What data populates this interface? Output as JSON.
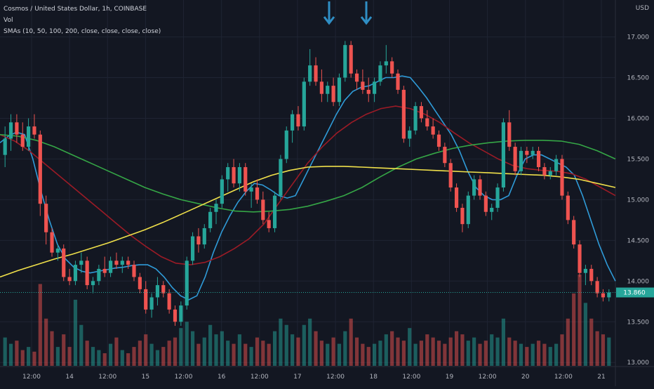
{
  "header": {
    "symbol_line": "Cosmos / United States Dollar, 1h, COINBASE",
    "volume_label": "Vol",
    "sma_label": "SMAs (10, 50, 100, 200, close, close, close, close)"
  },
  "price_axis": {
    "unit": "USD"
  },
  "last_price": "13.860",
  "colors": {
    "background": "#131722",
    "grid": "#1f2433",
    "up": "#26a69a",
    "down": "#ef5350",
    "sma10": "#2f9bd8",
    "sma50": "#9b1b26",
    "sma100": "#35a646",
    "sma200": "#f0e04a",
    "arrow": "#2f8ec4",
    "last_price_bg": "#26a69a"
  },
  "icons": [
    "down-arrow-icon",
    "down-arrow-icon"
  ],
  "chart_data": {
    "type": "candlestick",
    "title": "Cosmos / United States Dollar, 1h, COINBASE",
    "x_ticks": [
      "12:00",
      "14",
      "12:00",
      "15",
      "12:00",
      "16",
      "12:00",
      "17",
      "12:00",
      "18",
      "12:00",
      "19",
      "12:00",
      "20",
      "12:00",
      "21"
    ],
    "y_ticks": [
      "17.000",
      "16.500",
      "16.000",
      "15.500",
      "15.000",
      "14.500",
      "14.000",
      "13.500",
      "13.000"
    ],
    "ylim": [
      12.95,
      17.35
    ],
    "grid": true,
    "candles": [
      {
        "o": 15.55,
        "h": 15.9,
        "l": 15.4,
        "c": 15.75
      },
      {
        "o": 15.75,
        "h": 16.05,
        "l": 15.6,
        "c": 15.95
      },
      {
        "o": 15.95,
        "h": 16.05,
        "l": 15.7,
        "c": 15.8
      },
      {
        "o": 15.8,
        "h": 15.95,
        "l": 15.6,
        "c": 15.65
      },
      {
        "o": 15.65,
        "h": 16.0,
        "l": 15.6,
        "c": 15.9
      },
      {
        "o": 15.9,
        "h": 16.05,
        "l": 15.75,
        "c": 15.8
      },
      {
        "o": 15.8,
        "h": 15.85,
        "l": 14.8,
        "c": 14.95
      },
      {
        "o": 14.95,
        "h": 15.05,
        "l": 14.45,
        "c": 14.6
      },
      {
        "o": 14.6,
        "h": 14.65,
        "l": 14.3,
        "c": 14.35
      },
      {
        "o": 14.35,
        "h": 14.45,
        "l": 14.25,
        "c": 14.4
      },
      {
        "o": 14.4,
        "h": 14.45,
        "l": 14.0,
        "c": 14.05
      },
      {
        "o": 14.05,
        "h": 14.15,
        "l": 13.95,
        "c": 14.0
      },
      {
        "o": 14.0,
        "h": 14.25,
        "l": 13.95,
        "c": 14.2
      },
      {
        "o": 14.2,
        "h": 14.35,
        "l": 14.1,
        "c": 14.25
      },
      {
        "o": 14.25,
        "h": 14.3,
        "l": 13.9,
        "c": 13.95
      },
      {
        "o": 13.95,
        "h": 14.05,
        "l": 13.85,
        "c": 14.0
      },
      {
        "o": 14.0,
        "h": 14.2,
        "l": 13.95,
        "c": 14.15
      },
      {
        "o": 14.15,
        "h": 14.3,
        "l": 14.05,
        "c": 14.1
      },
      {
        "o": 14.1,
        "h": 14.3,
        "l": 14.05,
        "c": 14.25
      },
      {
        "o": 14.25,
        "h": 14.35,
        "l": 14.15,
        "c": 14.2
      },
      {
        "o": 14.2,
        "h": 14.3,
        "l": 14.1,
        "c": 14.25
      },
      {
        "o": 14.25,
        "h": 14.3,
        "l": 14.15,
        "c": 14.2
      },
      {
        "o": 14.2,
        "h": 14.25,
        "l": 14.0,
        "c": 14.05
      },
      {
        "o": 14.05,
        "h": 14.1,
        "l": 13.85,
        "c": 13.9
      },
      {
        "o": 13.9,
        "h": 14.0,
        "l": 13.6,
        "c": 13.65
      },
      {
        "o": 13.65,
        "h": 13.85,
        "l": 13.55,
        "c": 13.8
      },
      {
        "o": 13.8,
        "h": 14.05,
        "l": 13.7,
        "c": 13.95
      },
      {
        "o": 13.95,
        "h": 14.0,
        "l": 13.8,
        "c": 13.85
      },
      {
        "o": 13.85,
        "h": 13.9,
        "l": 13.6,
        "c": 13.65
      },
      {
        "o": 13.65,
        "h": 13.7,
        "l": 13.45,
        "c": 13.5
      },
      {
        "o": 13.5,
        "h": 13.75,
        "l": 13.45,
        "c": 13.7
      },
      {
        "o": 13.7,
        "h": 14.3,
        "l": 13.65,
        "c": 14.25
      },
      {
        "o": 14.25,
        "h": 14.6,
        "l": 14.2,
        "c": 14.55
      },
      {
        "o": 14.55,
        "h": 14.65,
        "l": 14.35,
        "c": 14.45
      },
      {
        "o": 14.45,
        "h": 14.7,
        "l": 14.4,
        "c": 14.65
      },
      {
        "o": 14.65,
        "h": 14.9,
        "l": 14.6,
        "c": 14.85
      },
      {
        "o": 14.85,
        "h": 15.0,
        "l": 14.7,
        "c": 14.95
      },
      {
        "o": 14.95,
        "h": 15.3,
        "l": 14.9,
        "c": 15.25
      },
      {
        "o": 15.25,
        "h": 15.45,
        "l": 15.1,
        "c": 15.4
      },
      {
        "o": 15.4,
        "h": 15.5,
        "l": 15.15,
        "c": 15.2
      },
      {
        "o": 15.2,
        "h": 15.45,
        "l": 15.1,
        "c": 15.4
      },
      {
        "o": 15.4,
        "h": 15.45,
        "l": 15.05,
        "c": 15.1
      },
      {
        "o": 15.1,
        "h": 15.2,
        "l": 14.9,
        "c": 15.15
      },
      {
        "o": 15.15,
        "h": 15.25,
        "l": 14.95,
        "c": 15.0
      },
      {
        "o": 15.0,
        "h": 15.1,
        "l": 14.7,
        "c": 14.75
      },
      {
        "o": 14.75,
        "h": 14.85,
        "l": 14.6,
        "c": 14.65
      },
      {
        "o": 14.65,
        "h": 15.1,
        "l": 14.6,
        "c": 15.05
      },
      {
        "o": 15.05,
        "h": 15.55,
        "l": 15.0,
        "c": 15.5
      },
      {
        "o": 15.5,
        "h": 15.9,
        "l": 15.45,
        "c": 15.85
      },
      {
        "o": 15.85,
        "h": 16.1,
        "l": 15.7,
        "c": 16.05
      },
      {
        "o": 16.05,
        "h": 16.15,
        "l": 15.85,
        "c": 15.9
      },
      {
        "o": 15.9,
        "h": 16.5,
        "l": 15.85,
        "c": 16.45
      },
      {
        "o": 16.45,
        "h": 16.85,
        "l": 16.4,
        "c": 16.65
      },
      {
        "o": 16.65,
        "h": 16.75,
        "l": 16.4,
        "c": 16.45
      },
      {
        "o": 16.45,
        "h": 16.6,
        "l": 16.2,
        "c": 16.3
      },
      {
        "o": 16.3,
        "h": 16.45,
        "l": 16.2,
        "c": 16.4
      },
      {
        "o": 16.4,
        "h": 16.5,
        "l": 16.15,
        "c": 16.2
      },
      {
        "o": 16.2,
        "h": 16.55,
        "l": 16.15,
        "c": 16.5
      },
      {
        "o": 16.5,
        "h": 16.95,
        "l": 16.45,
        "c": 16.9
      },
      {
        "o": 16.9,
        "h": 16.95,
        "l": 16.5,
        "c": 16.55
      },
      {
        "o": 16.55,
        "h": 16.6,
        "l": 16.35,
        "c": 16.45
      },
      {
        "o": 16.45,
        "h": 16.6,
        "l": 16.3,
        "c": 16.35
      },
      {
        "o": 16.35,
        "h": 16.5,
        "l": 16.2,
        "c": 16.3
      },
      {
        "o": 16.3,
        "h": 16.5,
        "l": 16.2,
        "c": 16.45
      },
      {
        "o": 16.45,
        "h": 16.7,
        "l": 16.4,
        "c": 16.65
      },
      {
        "o": 16.65,
        "h": 16.9,
        "l": 16.55,
        "c": 16.7
      },
      {
        "o": 16.7,
        "h": 16.75,
        "l": 16.5,
        "c": 16.55
      },
      {
        "o": 16.55,
        "h": 16.6,
        "l": 16.3,
        "c": 16.35
      },
      {
        "o": 16.35,
        "h": 16.4,
        "l": 15.7,
        "c": 15.75
      },
      {
        "o": 15.75,
        "h": 15.9,
        "l": 15.65,
        "c": 15.85
      },
      {
        "o": 15.85,
        "h": 16.2,
        "l": 15.8,
        "c": 16.15
      },
      {
        "o": 16.15,
        "h": 16.2,
        "l": 15.95,
        "c": 16.0
      },
      {
        "o": 16.0,
        "h": 16.1,
        "l": 15.85,
        "c": 15.9
      },
      {
        "o": 15.9,
        "h": 16.0,
        "l": 15.75,
        "c": 15.8
      },
      {
        "o": 15.8,
        "h": 15.85,
        "l": 15.6,
        "c": 15.65
      },
      {
        "o": 15.65,
        "h": 15.7,
        "l": 15.4,
        "c": 15.45
      },
      {
        "o": 15.45,
        "h": 15.5,
        "l": 15.1,
        "c": 15.15
      },
      {
        "o": 15.15,
        "h": 15.2,
        "l": 14.85,
        "c": 14.9
      },
      {
        "o": 14.9,
        "h": 14.95,
        "l": 14.6,
        "c": 14.7
      },
      {
        "o": 14.7,
        "h": 15.1,
        "l": 14.65,
        "c": 15.05
      },
      {
        "o": 15.05,
        "h": 15.3,
        "l": 15.0,
        "c": 15.25
      },
      {
        "o": 15.25,
        "h": 15.3,
        "l": 15.0,
        "c": 15.05
      },
      {
        "o": 15.05,
        "h": 15.1,
        "l": 14.8,
        "c": 14.85
      },
      {
        "o": 14.85,
        "h": 14.95,
        "l": 14.75,
        "c": 14.9
      },
      {
        "o": 14.9,
        "h": 15.2,
        "l": 14.85,
        "c": 15.15
      },
      {
        "o": 15.15,
        "h": 16.0,
        "l": 15.1,
        "c": 15.95
      },
      {
        "o": 15.95,
        "h": 16.1,
        "l": 15.6,
        "c": 15.65
      },
      {
        "o": 15.65,
        "h": 15.7,
        "l": 15.3,
        "c": 15.35
      },
      {
        "o": 15.35,
        "h": 15.65,
        "l": 15.3,
        "c": 15.6
      },
      {
        "o": 15.6,
        "h": 15.65,
        "l": 15.45,
        "c": 15.55
      },
      {
        "o": 15.55,
        "h": 15.65,
        "l": 15.5,
        "c": 15.6
      },
      {
        "o": 15.6,
        "h": 15.65,
        "l": 15.35,
        "c": 15.4
      },
      {
        "o": 15.4,
        "h": 15.45,
        "l": 15.25,
        "c": 15.3
      },
      {
        "o": 15.3,
        "h": 15.4,
        "l": 15.25,
        "c": 15.35
      },
      {
        "o": 15.35,
        "h": 15.55,
        "l": 15.3,
        "c": 15.5
      },
      {
        "o": 15.5,
        "h": 15.55,
        "l": 15.0,
        "c": 15.05
      },
      {
        "o": 15.05,
        "h": 15.1,
        "l": 14.7,
        "c": 14.75
      },
      {
        "o": 14.75,
        "h": 14.8,
        "l": 14.4,
        "c": 14.45
      },
      {
        "o": 14.45,
        "h": 14.5,
        "l": 14.05,
        "c": 14.1
      },
      {
        "o": 14.1,
        "h": 14.2,
        "l": 13.95,
        "c": 14.15
      },
      {
        "o": 14.15,
        "h": 14.2,
        "l": 13.95,
        "c": 14.0
      },
      {
        "o": 14.0,
        "h": 14.05,
        "l": 13.8,
        "c": 13.85
      },
      {
        "o": 13.85,
        "h": 13.9,
        "l": 13.75,
        "c": 13.8
      },
      {
        "o": 13.8,
        "h": 13.9,
        "l": 13.75,
        "c": 13.86
      }
    ],
    "volume": [
      18,
      14,
      16,
      10,
      12,
      9,
      52,
      30,
      22,
      12,
      20,
      12,
      42,
      26,
      16,
      12,
      10,
      8,
      14,
      18,
      10,
      8,
      12,
      16,
      20,
      14,
      10,
      12,
      16,
      18,
      24,
      28,
      22,
      14,
      18,
      26,
      20,
      22,
      16,
      14,
      20,
      14,
      12,
      18,
      16,
      14,
      22,
      30,
      26,
      20,
      18,
      26,
      30,
      22,
      16,
      14,
      18,
      14,
      22,
      30,
      18,
      14,
      12,
      14,
      16,
      20,
      22,
      18,
      16,
      24,
      14,
      16,
      20,
      18,
      16,
      14,
      18,
      22,
      20,
      16,
      18,
      14,
      16,
      20,
      18,
      30,
      18,
      16,
      14,
      12,
      14,
      16,
      14,
      12,
      14,
      20,
      30,
      46,
      58,
      40,
      30,
      22,
      20,
      18,
      16
    ],
    "series": [
      {
        "name": "SMA 10",
        "color": "#2f9bd8",
        "values": [
          15.7,
          15.78,
          15.83,
          15.8,
          15.5,
          15.1,
          14.75,
          14.45,
          14.27,
          14.17,
          14.12,
          14.1,
          14.12,
          14.14,
          14.16,
          14.17,
          14.19,
          14.2,
          14.2,
          14.15,
          14.05,
          13.92,
          13.82,
          13.77,
          13.82,
          14.05,
          14.35,
          14.6,
          14.8,
          14.97,
          15.1,
          15.2,
          15.18,
          15.12,
          15.05,
          15.02,
          15.05,
          15.25,
          15.45,
          15.65,
          15.85,
          16.05,
          16.22,
          16.33,
          16.38,
          16.4,
          16.45,
          16.5,
          16.5,
          16.52,
          16.5,
          16.38,
          16.25,
          16.1,
          15.95,
          15.8,
          15.6,
          15.35,
          15.15,
          15.05,
          15.0,
          15.0,
          15.05,
          15.3,
          15.5,
          15.55,
          15.55,
          15.5,
          15.45,
          15.4,
          15.3,
          15.05,
          14.75,
          14.45,
          14.2,
          14.0
        ]
      },
      {
        "name": "SMA 50",
        "color": "#9b1b26",
        "values": [
          15.8,
          15.72,
          15.6,
          15.45,
          15.3,
          15.15,
          15.0,
          14.85,
          14.7,
          14.55,
          14.42,
          14.3,
          14.22,
          14.2,
          14.23,
          14.3,
          14.4,
          14.52,
          14.7,
          14.95,
          15.2,
          15.45,
          15.65,
          15.82,
          15.95,
          16.05,
          16.12,
          16.15,
          16.12,
          16.05,
          15.95,
          15.82,
          15.7,
          15.6,
          15.5,
          15.42,
          15.38,
          15.36,
          15.35,
          15.32,
          15.25,
          15.15,
          15.05
        ]
      },
      {
        "name": "SMA 100",
        "color": "#35a646",
        "values": [
          15.8,
          15.78,
          15.73,
          15.65,
          15.55,
          15.45,
          15.35,
          15.25,
          15.15,
          15.07,
          15.0,
          14.95,
          14.9,
          14.86,
          14.85,
          14.86,
          14.88,
          14.92,
          14.98,
          15.05,
          15.15,
          15.28,
          15.4,
          15.5,
          15.57,
          15.63,
          15.67,
          15.7,
          15.72,
          15.73,
          15.73,
          15.72,
          15.68,
          15.6,
          15.5
        ]
      },
      {
        "name": "SMA 200",
        "color": "#f0e04a",
        "values": [
          14.05,
          14.13,
          14.2,
          14.27,
          14.33,
          14.4,
          14.47,
          14.55,
          14.63,
          14.72,
          14.82,
          14.92,
          15.02,
          15.12,
          15.22,
          15.3,
          15.36,
          15.4,
          15.41,
          15.41,
          15.4,
          15.39,
          15.38,
          15.37,
          15.36,
          15.35,
          15.34,
          15.33,
          15.32,
          15.31,
          15.3,
          15.28,
          15.25,
          15.2,
          15.15
        ]
      }
    ],
    "annotations": [
      "down-arrow-icon",
      "down-arrow-icon"
    ]
  }
}
